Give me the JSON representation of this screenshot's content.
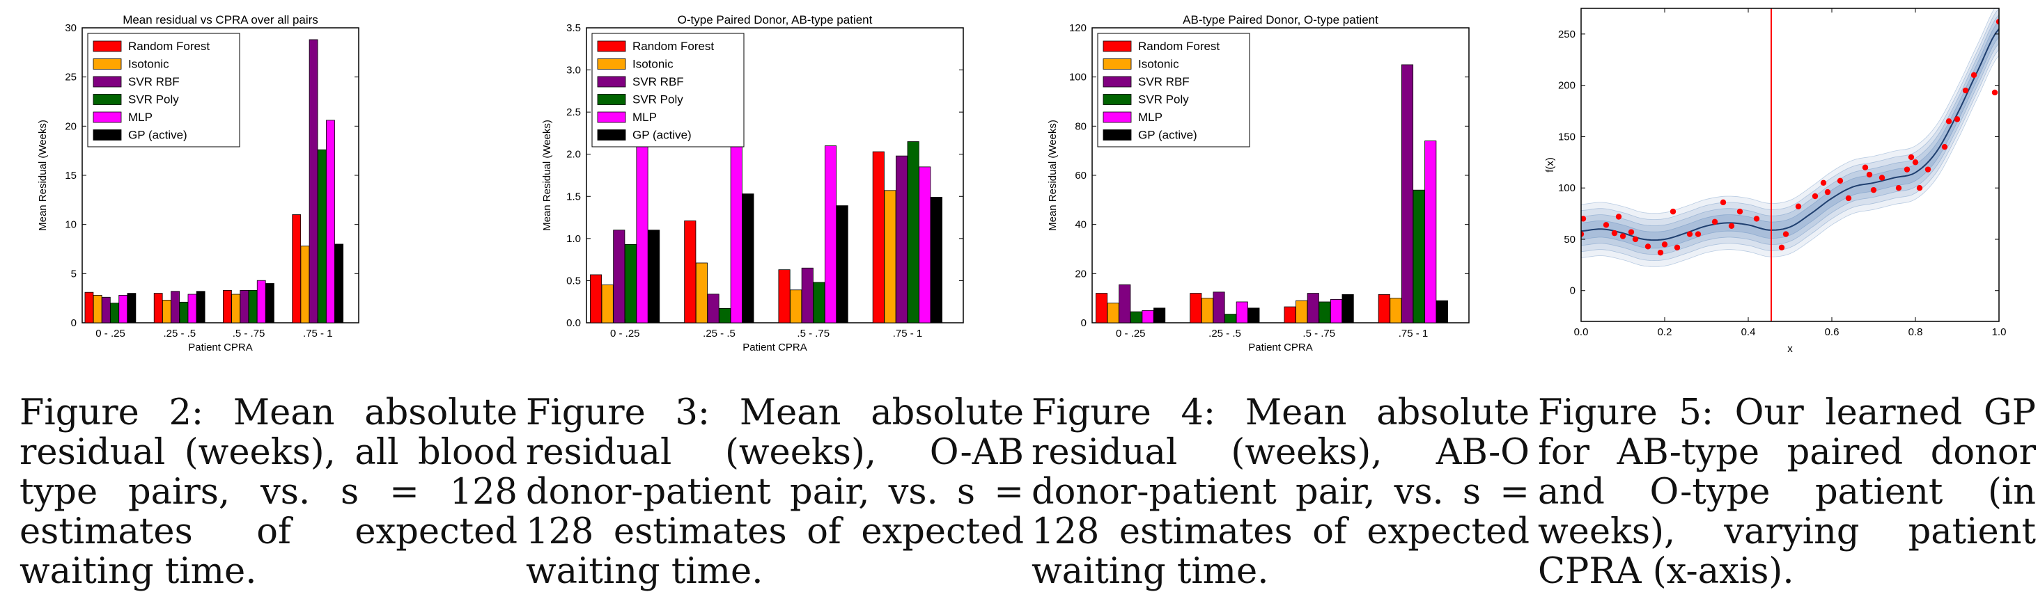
{
  "figures": [
    {
      "caption": "Figure 2: Mean absolute residual (weeks), all blood type pairs, vs. s = 128 estimates of expected waiting time.",
      "chart_data": {
        "type": "bar",
        "title": "Mean residual vs CPRA over all pairs",
        "xlabel": "Patient CPRA",
        "ylabel": "Mean Residual (Weeks)",
        "categories": [
          "0 - .25",
          ".25 - .5",
          ".5 - .75",
          ".75 - 1"
        ],
        "ylim": [
          0,
          30
        ],
        "yticks": [
          0,
          5,
          10,
          15,
          20,
          25,
          30
        ],
        "legend_position": "upper-left",
        "series": [
          {
            "name": "Random Forest",
            "color": "#ff0000",
            "values": [
              3.1,
              3.0,
              3.3,
              11.0
            ]
          },
          {
            "name": "Isotonic",
            "color": "#ffa500",
            "values": [
              2.8,
              2.3,
              2.9,
              7.8
            ]
          },
          {
            "name": "SVR RBF",
            "color": "#800080",
            "values": [
              2.6,
              3.2,
              3.3,
              28.8
            ]
          },
          {
            "name": "SVR Poly",
            "color": "#006400",
            "values": [
              2.0,
              2.1,
              3.3,
              17.6
            ]
          },
          {
            "name": "MLP",
            "color": "#ff00ff",
            "values": [
              2.8,
              2.9,
              4.3,
              20.6
            ]
          },
          {
            "name": "GP (active)",
            "color": "#000000",
            "values": [
              3.0,
              3.2,
              4.0,
              8.0
            ]
          }
        ]
      }
    },
    {
      "caption": "Figure 3: Mean absolute residual (weeks), O-AB donor-patient pair, vs. s = 128 estimates of expected waiting time.",
      "chart_data": {
        "type": "bar",
        "title": "O-type Paired Donor, AB-type patient",
        "xlabel": "Patient CPRA",
        "ylabel": "Mean Residual (Weeks)",
        "categories": [
          "0 - .25",
          ".25 - .5",
          ".5 - .75",
          ".75 - 1"
        ],
        "ylim": [
          0,
          3.5
        ],
        "yticks": [
          0.0,
          0.5,
          1.0,
          1.5,
          2.0,
          2.5,
          3.0,
          3.5
        ],
        "legend_position": "upper-left",
        "series": [
          {
            "name": "Random Forest",
            "color": "#ff0000",
            "values": [
              0.57,
              1.21,
              0.63,
              2.03
            ]
          },
          {
            "name": "Isotonic",
            "color": "#ffa500",
            "values": [
              0.45,
              0.71,
              0.39,
              1.57
            ]
          },
          {
            "name": "SVR RBF",
            "color": "#800080",
            "values": [
              1.1,
              0.34,
              0.65,
              1.98
            ]
          },
          {
            "name": "SVR Poly",
            "color": "#006400",
            "values": [
              0.93,
              0.17,
              0.48,
              2.15
            ]
          },
          {
            "name": "MLP",
            "color": "#ff00ff",
            "values": [
              2.1,
              3.09,
              2.1,
              1.85
            ]
          },
          {
            "name": "GP (active)",
            "color": "#000000",
            "values": [
              1.1,
              1.53,
              1.39,
              1.49
            ]
          }
        ]
      }
    },
    {
      "caption": "Figure 4: Mean absolute residual (weeks), AB-O donor-patient pair, vs. s = 128 estimates of expected waiting time.",
      "chart_data": {
        "type": "bar",
        "title": "AB-type Paired Donor, O-type patient",
        "xlabel": "Patient CPRA",
        "ylabel": "Mean Residual (Weeks)",
        "categories": [
          "0 - .25",
          ".25 - .5",
          ".5 - .75",
          ".75 - 1"
        ],
        "ylim": [
          0,
          120
        ],
        "yticks": [
          0,
          20,
          40,
          60,
          80,
          100,
          120
        ],
        "legend_position": "upper-left",
        "series": [
          {
            "name": "Random Forest",
            "color": "#ff0000",
            "values": [
              12,
              12,
              6.5,
              11.5
            ]
          },
          {
            "name": "Isotonic",
            "color": "#ffa500",
            "values": [
              8,
              10,
              9,
              10
            ]
          },
          {
            "name": "SVR RBF",
            "color": "#800080",
            "values": [
              15.5,
              12.5,
              12,
              105
            ]
          },
          {
            "name": "SVR Poly",
            "color": "#006400",
            "values": [
              4.5,
              3.5,
              8.5,
              54
            ]
          },
          {
            "name": "MLP",
            "color": "#ff00ff",
            "values": [
              5,
              8.5,
              9.5,
              74
            ]
          },
          {
            "name": "GP (active)",
            "color": "#000000",
            "values": [
              6,
              6,
              11.5,
              9
            ]
          }
        ]
      }
    },
    {
      "caption": "Figure 5: Our learned GP for AB-type paired donor and O-type patient (in weeks), varying patient CPRA (x-axis).",
      "chart_data": {
        "type": "scatter",
        "title": "",
        "xlabel": "x",
        "ylabel": "f(x)",
        "xlim": [
          0.0,
          1.0
        ],
        "ylim": [
          -30,
          275
        ],
        "xticks": [
          0.0,
          0.2,
          0.4,
          0.6,
          0.8,
          1.0
        ],
        "yticks": [
          0,
          50,
          100,
          150,
          200,
          250
        ],
        "vertical_line_x": 0.455,
        "colors": {
          "points": "#ff0000",
          "mean": "#1f3f6f",
          "band": "#4a7ab5",
          "vline": "#ff0000"
        },
        "mean_curve": {
          "x": [
            0.0,
            0.05,
            0.1,
            0.15,
            0.2,
            0.25,
            0.3,
            0.35,
            0.4,
            0.45,
            0.5,
            0.55,
            0.6,
            0.65,
            0.7,
            0.75,
            0.8,
            0.85,
            0.9,
            0.95,
            1.0
          ],
          "y": [
            58,
            60,
            56,
            50,
            50,
            56,
            63,
            66,
            64,
            59,
            62,
            75,
            90,
            101,
            105,
            110,
            115,
            135,
            172,
            215,
            255
          ]
        },
        "points": {
          "x": [
            0.0,
            0.005,
            0.06,
            0.08,
            0.09,
            0.1,
            0.12,
            0.13,
            0.16,
            0.19,
            0.2,
            0.22,
            0.23,
            0.26,
            0.28,
            0.32,
            0.34,
            0.36,
            0.38,
            0.42,
            0.48,
            0.49,
            0.52,
            0.56,
            0.58,
            0.59,
            0.62,
            0.64,
            0.68,
            0.69,
            0.7,
            0.72,
            0.76,
            0.78,
            0.79,
            0.8,
            0.81,
            0.83,
            0.87,
            0.88,
            0.9,
            0.92,
            0.94,
            0.99,
            1.0
          ],
          "y": [
            55,
            70,
            64,
            56,
            72,
            53,
            57,
            50,
            43,
            37,
            45,
            77,
            42,
            55,
            55,
            67,
            86,
            63,
            77,
            70,
            42,
            55,
            82,
            92,
            105,
            96,
            107,
            90,
            120,
            113,
            98,
            110,
            100,
            118,
            130,
            125,
            100,
            118,
            140,
            165,
            167,
            195,
            210,
            193,
            262
          ]
        }
      }
    }
  ]
}
